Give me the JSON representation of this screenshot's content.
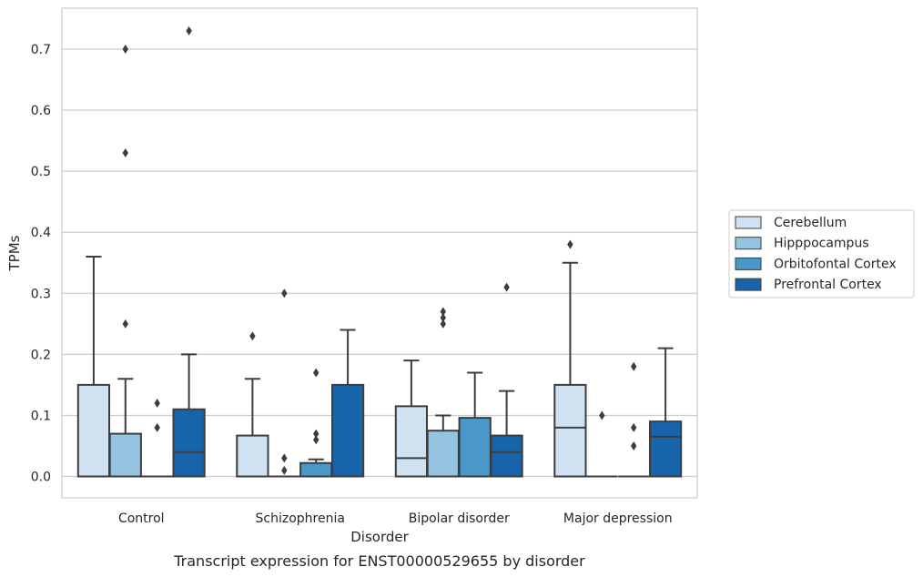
{
  "chart_data": {
    "type": "box",
    "title": "",
    "caption": "Transcript expression for ENST00000529655 by disorder",
    "xlabel": "Disorder",
    "ylabel": "TPMs",
    "ylim": [
      -0.035,
      0.767
    ],
    "yticks": [
      "0.0",
      "0.1",
      "0.2",
      "0.3",
      "0.4",
      "0.5",
      "0.6",
      "0.7"
    ],
    "grid": true,
    "legend_position": "right",
    "categories": [
      "Control",
      "Schizophrenia",
      "Bipolar disorder",
      "Major depression"
    ],
    "series": [
      {
        "name": "Cerebellum",
        "color": "#d0e1f2",
        "boxes": [
          {
            "q1": 0,
            "median": 0,
            "q3": 0.15,
            "whisker_low": 0,
            "whisker_high": 0.36,
            "outliers": []
          },
          {
            "q1": 0,
            "median": 0,
            "q3": 0.067,
            "whisker_low": 0,
            "whisker_high": 0.16,
            "outliers": [
              0.23
            ]
          },
          {
            "q1": 0,
            "median": 0.03,
            "q3": 0.115,
            "whisker_low": 0,
            "whisker_high": 0.19,
            "outliers": []
          },
          {
            "q1": 0,
            "median": 0.08,
            "q3": 0.15,
            "whisker_low": 0,
            "whisker_high": 0.35,
            "outliers": [
              0.38
            ]
          }
        ]
      },
      {
        "name": "Hipppocampus",
        "color": "#94c4df",
        "boxes": [
          {
            "q1": 0,
            "median": 0,
            "q3": 0.07,
            "whisker_low": 0,
            "whisker_high": 0.16,
            "outliers": [
              0.25,
              0.53,
              0.7
            ]
          },
          {
            "q1": 0,
            "median": 0,
            "q3": 0,
            "whisker_low": 0,
            "whisker_high": 0,
            "outliers": [
              0.01,
              0.03,
              0.3
            ]
          },
          {
            "q1": 0,
            "median": 0,
            "q3": 0.075,
            "whisker_low": 0,
            "whisker_high": 0.1,
            "outliers": [
              0.25,
              0.26,
              0.27
            ]
          },
          {
            "q1": 0,
            "median": 0,
            "q3": 0,
            "whisker_low": 0,
            "whisker_high": 0,
            "outliers": [
              0.1
            ]
          }
        ]
      },
      {
        "name": "Orbitofontal Cortex",
        "color": "#4a98c9",
        "boxes": [
          {
            "q1": 0,
            "median": 0,
            "q3": 0,
            "whisker_low": 0,
            "whisker_high": 0,
            "outliers": [
              0.08,
              0.12
            ]
          },
          {
            "q1": 0,
            "median": 0,
            "q3": 0.022,
            "whisker_low": 0,
            "whisker_high": 0.028,
            "outliers": [
              0.06,
              0.07,
              0.17
            ]
          },
          {
            "q1": 0,
            "median": 0,
            "q3": 0.096,
            "whisker_low": 0,
            "whisker_high": 0.17,
            "outliers": []
          },
          {
            "q1": 0,
            "median": 0,
            "q3": 0,
            "whisker_low": 0,
            "whisker_high": 0,
            "outliers": [
              0.05,
              0.08,
              0.18
            ]
          }
        ]
      },
      {
        "name": "Prefrontal Cortex",
        "color": "#1764ab",
        "boxes": [
          {
            "q1": 0,
            "median": 0.04,
            "q3": 0.11,
            "whisker_low": 0,
            "whisker_high": 0.2,
            "outliers": [
              0.73
            ]
          },
          {
            "q1": 0,
            "median": 0,
            "q3": 0.15,
            "whisker_low": 0,
            "whisker_high": 0.24,
            "outliers": []
          },
          {
            "q1": 0,
            "median": 0.04,
            "q3": 0.067,
            "whisker_low": 0,
            "whisker_high": 0.14,
            "outliers": [
              0.31
            ]
          },
          {
            "q1": 0,
            "median": 0.065,
            "q3": 0.09,
            "whisker_low": 0,
            "whisker_high": 0.21,
            "outliers": []
          }
        ]
      }
    ]
  }
}
